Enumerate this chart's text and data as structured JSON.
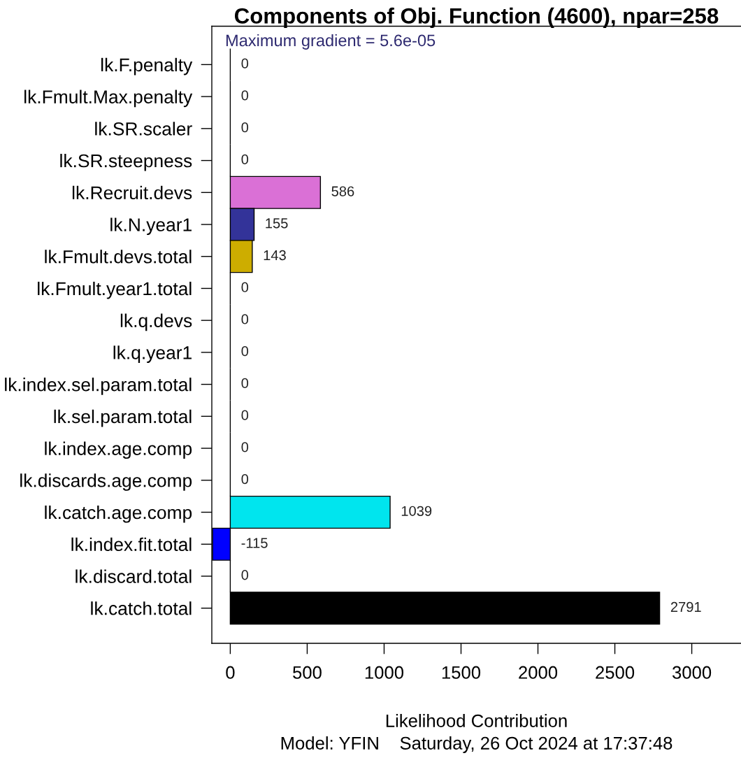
{
  "chart_data": {
    "type": "bar",
    "orientation": "horizontal",
    "title": "Components of Obj. Function (4600), npar=258",
    "subtitle": "Maximum gradient = 5.6e-05",
    "xlabel": "Likelihood Contribution",
    "annotations": [
      "Model: YFIN    Saturday, 26 Oct 2024 at 17:37:48"
    ],
    "categories": [
      "lk.F.penalty",
      "lk.Fmult.Max.penalty",
      "lk.SR.scaler",
      "lk.SR.steepness",
      "lk.Recruit.devs",
      "lk.N.year1",
      "lk.Fmult.devs.total",
      "lk.Fmult.year1.total",
      "lk.q.devs",
      "lk.q.year1",
      "lk.index.sel.param.total",
      "lk.sel.param.total",
      "lk.index.age.comp",
      "lk.discards.age.comp",
      "lk.catch.age.comp",
      "lk.index.fit.total",
      "lk.discard.total",
      "lk.catch.total"
    ],
    "values": [
      0,
      0,
      0,
      0,
      586,
      155,
      143,
      0,
      0,
      0,
      0,
      0,
      0,
      0,
      1039,
      -115,
      0,
      2791
    ],
    "colors": [
      null,
      null,
      null,
      null,
      "#da70d6",
      "#333399",
      "#cdad00",
      null,
      null,
      null,
      null,
      null,
      null,
      null,
      "#00e5ee",
      "#0000ff",
      null,
      "#000000"
    ],
    "data_labels": true,
    "xlim": [
      -120,
      3320
    ],
    "xticks": [
      0,
      500,
      1000,
      1500,
      2000,
      2500,
      3000
    ]
  }
}
